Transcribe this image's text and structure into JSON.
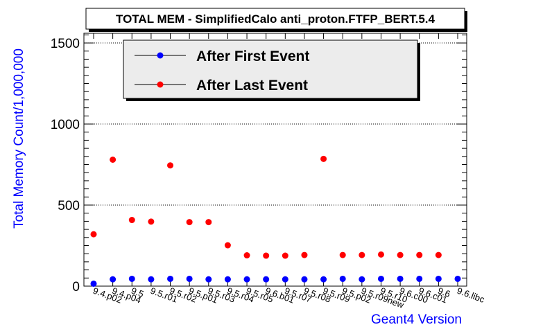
{
  "chart_data": {
    "type": "scatter",
    "title": "TOTAL MEM - SimplifiedCalo anti_proton.FTFP_BERT.5.4",
    "xlabel": "Geant4 Version",
    "ylabel": "Total Memory Count/1,000,000",
    "ylim": [
      0,
      1560
    ],
    "yticks": [
      0,
      500,
      1000,
      1500
    ],
    "grid": true,
    "legend_position": "top-left",
    "categories": [
      "9.4.p02",
      "9.4.p04",
      "9.5",
      "9.5.r01",
      "9.5.r02",
      "9.5.p01",
      "9.5.r03",
      "9.5.r04",
      "9.5.r05",
      "9.6.b01",
      "9.5.r07",
      "9.5.r08",
      "9.5.r09",
      "9.5.p02",
      "9.5.r09new",
      "9.5.r10",
      "9.6.c00",
      "9.6.c01",
      "9.6",
      "9.6.libc"
    ],
    "series": [
      {
        "name": "After First Event",
        "color": "#0000ff",
        "values": [
          15,
          42,
          45,
          42,
          45,
          45,
          42,
          42,
          42,
          42,
          42,
          42,
          42,
          45,
          42,
          45,
          45,
          45,
          45,
          45
        ]
      },
      {
        "name": "After Last Event",
        "color": "#ff0000",
        "values": [
          320,
          780,
          408,
          398,
          745,
          395,
          395,
          252,
          190,
          188,
          188,
          192,
          785,
          192,
          192,
          195,
          192,
          192,
          192,
          null
        ]
      }
    ]
  }
}
